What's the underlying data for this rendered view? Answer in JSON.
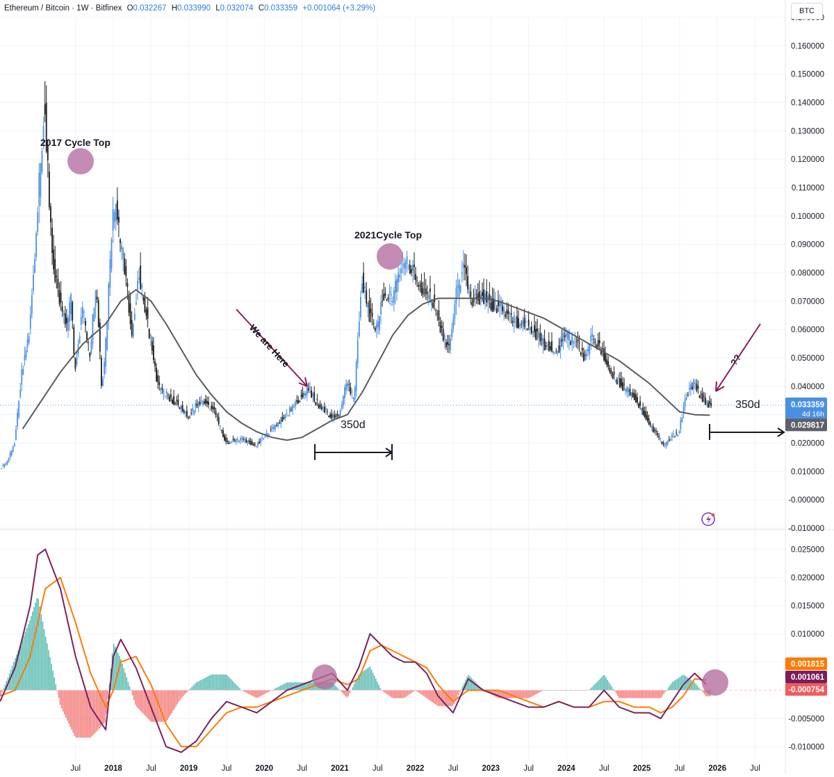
{
  "header": {
    "symbol": "Ethereum / Bitcoin · 1W · Bitfinex",
    "open_label": "O",
    "open": "0.032267",
    "high_label": "H",
    "high": "0.033990",
    "low_label": "L",
    "low": "0.032074",
    "close_label": "C",
    "close": "0.033359",
    "change": "+0.001064 (+3.29%)"
  },
  "currency_button": "BTC",
  "colors": {
    "up": "#4a90e2",
    "down": "#1a1a1a",
    "ma": "#5a5a5a",
    "macd": "#7a1f5c",
    "signal": "#ff7a00",
    "hist_pos": "#26a69a",
    "hist_neg": "#ef5350",
    "circle": "#b36b9f",
    "arrow": "#8b1a5a"
  },
  "chart_data": [
    {
      "type": "line",
      "title": "Ethereum / Bitcoin · 1W · Bitfinex",
      "x_ticks": [
        "Jul",
        "2018",
        "Jul",
        "2019",
        "Jul",
        "2020",
        "Jul",
        "2021",
        "Jul",
        "2022",
        "Jul",
        "2023",
        "Jul",
        "2024",
        "Jul",
        "2025",
        "Jul",
        "2026",
        "Jul"
      ],
      "y_ticks": [
        "0.170000",
        "0.160000",
        "0.150000",
        "0.140000",
        "0.130000",
        "0.120000",
        "0.110000",
        "0.100000",
        "0.090000",
        "0.080000",
        "0.070000",
        "0.060000",
        "0.050000",
        "0.040000",
        "0.030000",
        "0.020000",
        "0.010000",
        "-0.000000",
        "-0.010000"
      ],
      "ylim": [
        -0.01,
        0.17
      ],
      "xlim": [
        2016.5,
        2026.9
      ],
      "series": [
        {
          "role": "price",
          "x": [
            2016.5,
            2016.6,
            2016.7,
            2016.8,
            2016.9,
            2017.0,
            2017.1,
            2017.2,
            2017.3,
            2017.4,
            2017.45,
            2017.5,
            2017.6,
            2017.7,
            2017.75,
            2017.8,
            2017.85,
            2017.9,
            2018.0,
            2018.05,
            2018.1,
            2018.15,
            2018.25,
            2018.35,
            2018.45,
            2018.6,
            2018.75,
            2018.9,
            2019.0,
            2019.1,
            2019.2,
            2019.35,
            2019.5,
            2019.6,
            2019.75,
            2019.9,
            2020.0,
            2020.15,
            2020.3,
            2020.45,
            2020.6,
            2020.7,
            2020.8,
            2020.9,
            2021.0,
            2021.1,
            2021.2,
            2021.3,
            2021.4,
            2021.5,
            2021.6,
            2021.7,
            2021.8,
            2021.9,
            2022.0,
            2022.1,
            2022.25,
            2022.35,
            2022.45,
            2022.55,
            2022.65,
            2022.75,
            2022.9,
            2023.0,
            2023.15,
            2023.3,
            2023.5,
            2023.7,
            2023.9,
            2024.0,
            2024.15,
            2024.25,
            2024.35,
            2024.45,
            2024.6,
            2024.75,
            2024.9,
            2025.0,
            2025.15,
            2025.3,
            2025.4,
            2025.5,
            2025.6,
            2025.7,
            2025.8,
            2025.9
          ],
          "y": [
            0.011,
            0.013,
            0.02,
            0.045,
            0.06,
            0.1,
            0.14,
            0.085,
            0.07,
            0.06,
            0.072,
            0.045,
            0.068,
            0.05,
            0.07,
            0.072,
            0.04,
            0.05,
            0.1,
            0.104,
            0.09,
            0.085,
            0.058,
            0.08,
            0.065,
            0.04,
            0.036,
            0.033,
            0.029,
            0.033,
            0.035,
            0.031,
            0.02,
            0.021,
            0.021,
            0.019,
            0.022,
            0.026,
            0.03,
            0.035,
            0.039,
            0.034,
            0.032,
            0.029,
            0.03,
            0.041,
            0.035,
            0.079,
            0.065,
            0.06,
            0.074,
            0.07,
            0.08,
            0.085,
            0.079,
            0.074,
            0.07,
            0.06,
            0.052,
            0.072,
            0.081,
            0.07,
            0.072,
            0.069,
            0.068,
            0.063,
            0.062,
            0.055,
            0.053,
            0.058,
            0.055,
            0.05,
            0.057,
            0.054,
            0.045,
            0.04,
            0.037,
            0.032,
            0.025,
            0.019,
            0.022,
            0.024,
            0.037,
            0.041,
            0.036,
            0.033359
          ]
        },
        {
          "role": "moving_average",
          "x": [
            2016.8,
            2017.0,
            2017.3,
            2017.6,
            2017.9,
            2018.1,
            2018.3,
            2018.5,
            2018.7,
            2018.9,
            2019.1,
            2019.3,
            2019.5,
            2019.7,
            2019.9,
            2020.1,
            2020.3,
            2020.5,
            2020.7,
            2020.9,
            2021.1,
            2021.3,
            2021.5,
            2021.7,
            2021.9,
            2022.1,
            2022.3,
            2022.5,
            2022.7,
            2022.9,
            2023.1,
            2023.3,
            2023.5,
            2023.7,
            2023.9,
            2024.1,
            2024.3,
            2024.5,
            2024.7,
            2024.9,
            2025.1,
            2025.3,
            2025.5,
            2025.7,
            2025.9
          ],
          "y": [
            0.025,
            0.033,
            0.045,
            0.055,
            0.062,
            0.07,
            0.074,
            0.07,
            0.062,
            0.053,
            0.044,
            0.037,
            0.031,
            0.027,
            0.024,
            0.022,
            0.021,
            0.022,
            0.025,
            0.028,
            0.03,
            0.038,
            0.048,
            0.058,
            0.065,
            0.069,
            0.071,
            0.071,
            0.071,
            0.071,
            0.07,
            0.068,
            0.066,
            0.064,
            0.061,
            0.058,
            0.055,
            0.052,
            0.049,
            0.045,
            0.041,
            0.036,
            0.031,
            0.03,
            0.029817
          ]
        },
        {
          "role": "macd",
          "x": [
            2016.5,
            2016.7,
            2016.9,
            2017.0,
            2017.1,
            2017.3,
            2017.5,
            2017.7,
            2017.9,
            2018.0,
            2018.1,
            2018.3,
            2018.5,
            2018.7,
            2018.9,
            2019.1,
            2019.3,
            2019.5,
            2019.7,
            2019.9,
            2020.1,
            2020.3,
            2020.5,
            2020.7,
            2020.9,
            2021.1,
            2021.25,
            2021.4,
            2021.55,
            2021.7,
            2021.85,
            2022.0,
            2022.15,
            2022.3,
            2022.5,
            2022.7,
            2022.9,
            2023.1,
            2023.3,
            2023.5,
            2023.7,
            2023.9,
            2024.1,
            2024.3,
            2024.5,
            2024.7,
            2024.9,
            2025.1,
            2025.25,
            2025.4,
            2025.55,
            2025.7,
            2025.85
          ],
          "y": [
            -0.002,
            0.004,
            0.015,
            0.024,
            0.025,
            0.018,
            0.006,
            -0.003,
            -0.007,
            0.006,
            0.009,
            0.004,
            -0.003,
            -0.01,
            -0.011,
            -0.009,
            -0.005,
            -0.002,
            -0.003,
            -0.004,
            -0.002,
            0.0,
            0.001,
            0.002,
            0.003,
            0.0,
            0.004,
            0.01,
            0.008,
            0.006,
            0.005,
            0.005,
            0.003,
            -0.001,
            -0.004,
            0.002,
            0.0,
            -0.001,
            -0.002,
            -0.003,
            -0.003,
            -0.002,
            -0.003,
            -0.003,
            0.0,
            -0.003,
            -0.004,
            -0.004,
            -0.005,
            -0.002,
            0.001,
            0.003,
            0.001061
          ]
        },
        {
          "role": "signal",
          "x": [
            2016.5,
            2016.7,
            2016.9,
            2017.0,
            2017.1,
            2017.3,
            2017.5,
            2017.7,
            2017.9,
            2018.0,
            2018.1,
            2018.3,
            2018.5,
            2018.7,
            2018.9,
            2019.1,
            2019.3,
            2019.5,
            2019.7,
            2019.9,
            2020.1,
            2020.3,
            2020.5,
            2020.7,
            2020.9,
            2021.1,
            2021.25,
            2021.4,
            2021.55,
            2021.7,
            2021.85,
            2022.0,
            2022.15,
            2022.3,
            2022.5,
            2022.7,
            2022.9,
            2023.1,
            2023.3,
            2023.5,
            2023.7,
            2023.9,
            2024.1,
            2024.3,
            2024.5,
            2024.7,
            2024.9,
            2025.1,
            2025.25,
            2025.4,
            2025.55,
            2025.7,
            2025.85
          ],
          "y": [
            -0.001,
            0.0,
            0.006,
            0.012,
            0.018,
            0.02,
            0.012,
            0.003,
            -0.003,
            0.0,
            0.005,
            0.006,
            0.001,
            -0.006,
            -0.01,
            -0.01,
            -0.007,
            -0.004,
            -0.003,
            -0.003,
            -0.002,
            -0.001,
            0.0,
            0.001,
            0.002,
            0.001,
            0.002,
            0.007,
            0.008,
            0.007,
            0.006,
            0.005,
            0.004,
            0.001,
            -0.002,
            0.0,
            0.0,
            0.0,
            -0.001,
            -0.002,
            -0.003,
            -0.002,
            -0.003,
            -0.003,
            -0.002,
            -0.002,
            -0.003,
            -0.003,
            -0.004,
            -0.003,
            -0.001,
            0.002,
            0.001815
          ]
        }
      ],
      "last_price_label": "0.033359",
      "countdown_label": "4d 16h",
      "ma_label": "0.029817",
      "annotations": {
        "cycle_2017": "2017 Cycle Top",
        "cycle_2021": "2021Cycle Top",
        "we_are_here": "We are Here",
        "question": "??",
        "span_left": "350d",
        "span_right": "350d"
      }
    },
    {
      "type": "line",
      "y_ticks": [
        "0.025000",
        "0.020000",
        "0.015000",
        "0.010000",
        "0.005000",
        "-0.005000",
        "-0.010000"
      ],
      "ylim": [
        -0.0123,
        0.0275
      ],
      "labels": {
        "signal": "0.001815",
        "macd": "0.001061",
        "hist": "-0.000754"
      }
    }
  ]
}
